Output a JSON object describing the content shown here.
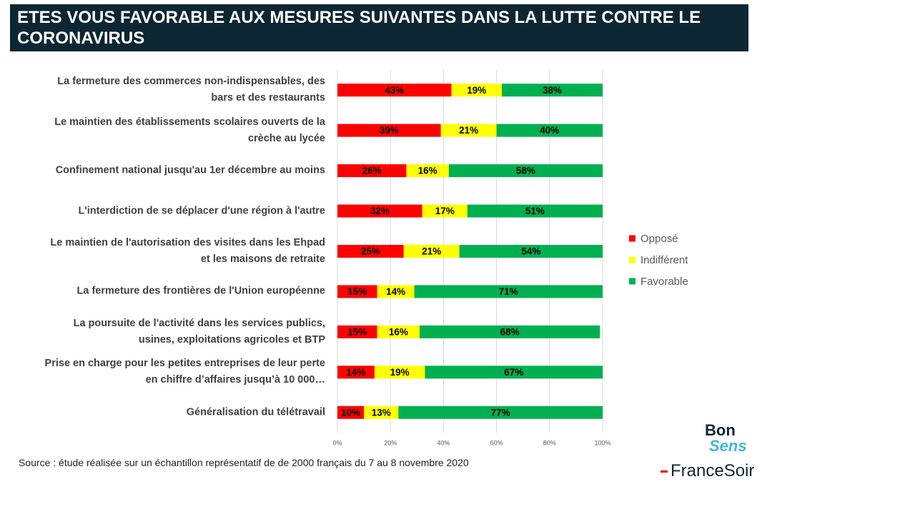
{
  "chart_data": {
    "type": "stacked_bar_horizontal",
    "title": "ETES VOUS FAVORABLE AUX MESURES SUIVANTES DANS LA LUTTE CONTRE LE CORONAVIRUS",
    "categories": [
      "La fermeture des commerces non-indispensables, des bars et des restaurants",
      "Le maintien des établissements scolaires ouverts de la crèche au lycée",
      "Confinement national jusqu'au 1er décembre au moins",
      "L'interdiction de se déplacer d'une région à l'autre",
      "Le maintien de l'autorisation des visites dans les Ehpad et les maisons de retraite",
      "La fermeture des frontières de l'Union européenne",
      "La poursuite de l'activité dans les services publics, usines, exploitations agricoles et BTP",
      "Prise en charge pour les petites entreprises de leur perte en chiffre d’affaires jusqu’à 10 000…",
      "Généralisation du télétravail"
    ],
    "series": [
      {
        "name": "Opposé",
        "color": "#ff0000",
        "values": [
          43,
          39,
          26,
          32,
          25,
          15,
          15,
          14,
          10
        ],
        "value_labels": [
          "43%",
          "39%",
          "26%",
          "32%",
          "25%",
          "15%",
          "15%",
          "14%",
          "10%"
        ]
      },
      {
        "name": "Indifférent",
        "color": "#ffff00",
        "values": [
          19,
          21,
          16,
          17,
          21,
          14,
          16,
          19,
          13
        ],
        "value_labels": [
          "19%",
          "21%",
          "16%",
          "17%",
          "21%",
          "14%",
          "16%",
          "19%",
          "13%"
        ]
      },
      {
        "name": "Favorable",
        "color": "#00b050",
        "values": [
          38,
          40,
          58,
          51,
          54,
          71,
          68,
          67,
          77
        ],
        "value_labels": [
          "38%",
          "40%",
          "58%",
          "51%",
          "54%",
          "71%",
          "68%",
          "67%",
          "77%"
        ]
      }
    ],
    "xlim": [
      0,
      100
    ],
    "xticks": [
      {
        "value": 0,
        "label": "0%"
      },
      {
        "value": 20,
        "label": "20%"
      },
      {
        "value": 40,
        "label": "40%"
      },
      {
        "value": 60,
        "label": "60%"
      },
      {
        "value": 80,
        "label": "80%"
      },
      {
        "value": 100,
        "label": "100%"
      }
    ],
    "grid": true,
    "legend": "right",
    "source": "Source : étude réalisée sur un échantillon représentatif de de 2000 français du 7 au 8 novembre 2020",
    "logo_top": [
      "Bon",
      "Sens"
    ],
    "logo_bottom": "FranceSoir"
  }
}
